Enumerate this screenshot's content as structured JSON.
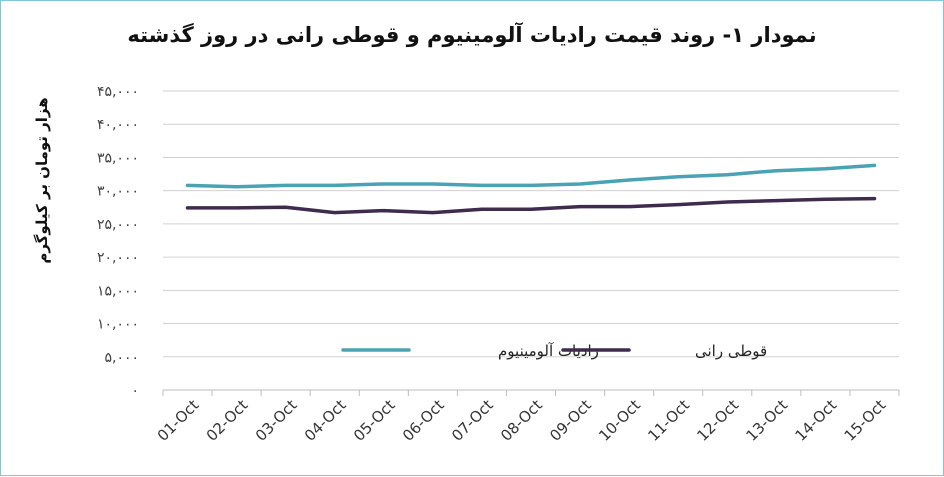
{
  "chart_data": {
    "type": "line",
    "title": "نمودار ۱- روند قیمت رادیات آلومینیوم و قوطی رانی در روز گذشته",
    "ylabel": "هزار تومان بر کیلوگرم",
    "xlabel": "",
    "ylim": [
      0,
      45000
    ],
    "yticks": [
      0,
      5000,
      10000,
      15000,
      20000,
      25000,
      30000,
      35000,
      40000,
      45000
    ],
    "ytick_labels": [
      "۰",
      "۵,۰۰۰",
      "۱۰,۰۰۰",
      "۱۵,۰۰۰",
      "۲۰,۰۰۰",
      "۲۵,۰۰۰",
      "۳۰,۰۰۰",
      "۳۵,۰۰۰",
      "۴۰,۰۰۰",
      "۴۵,۰۰۰"
    ],
    "categories": [
      "01-Oct",
      "02-Oct",
      "03-Oct",
      "04-Oct",
      "05-Oct",
      "06-Oct",
      "07-Oct",
      "08-Oct",
      "09-Oct",
      "10-Oct",
      "11-Oct",
      "12-Oct",
      "13-Oct",
      "14-Oct",
      "15-Oct"
    ],
    "series": [
      {
        "name": "رادیات آلومینیوم",
        "color": "#4aa3b4",
        "values": [
          30800,
          30600,
          30800,
          30800,
          31000,
          31000,
          30800,
          30800,
          31000,
          31600,
          32100,
          32400,
          33000,
          33300,
          33800
        ]
      },
      {
        "name": "قوطی رانی",
        "color": "#3e2b4e",
        "values": [
          27400,
          27400,
          27500,
          26700,
          27000,
          26700,
          27200,
          27200,
          27600,
          27600,
          27900,
          28300,
          28500,
          28700,
          28800
        ]
      }
    ],
    "grid": true,
    "legend_position": "inside-bottom-center"
  }
}
